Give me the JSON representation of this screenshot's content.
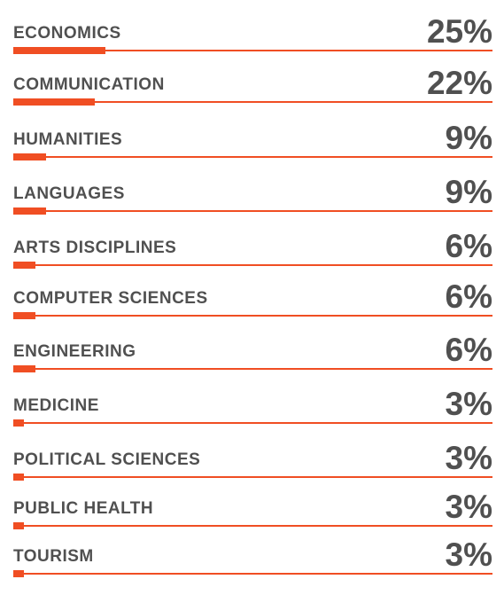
{
  "chart_data": {
    "type": "bar",
    "categories": [
      "ECONOMICS",
      "COMMUNICATION",
      "HUMANITIES",
      "LANGUAGES",
      "ARTS DISCIPLINES",
      "COMPUTER SCIENCES",
      "ENGINEERING",
      "MEDICINE",
      "POLITICAL SCIENCES",
      "PUBLIC HEALTH",
      "TOURISM"
    ],
    "values": [
      25,
      22,
      9,
      9,
      6,
      6,
      6,
      3,
      3,
      3,
      3
    ],
    "value_labels": [
      "25%",
      "22%",
      "9%",
      "9%",
      "6%",
      "6%",
      "6%",
      "3%",
      "3%",
      "3%",
      "3%"
    ],
    "unit": "%",
    "orientation": "horizontal",
    "ylim": [
      0,
      100
    ],
    "colors": {
      "bar": "#f04e23",
      "text": "#505050"
    }
  }
}
